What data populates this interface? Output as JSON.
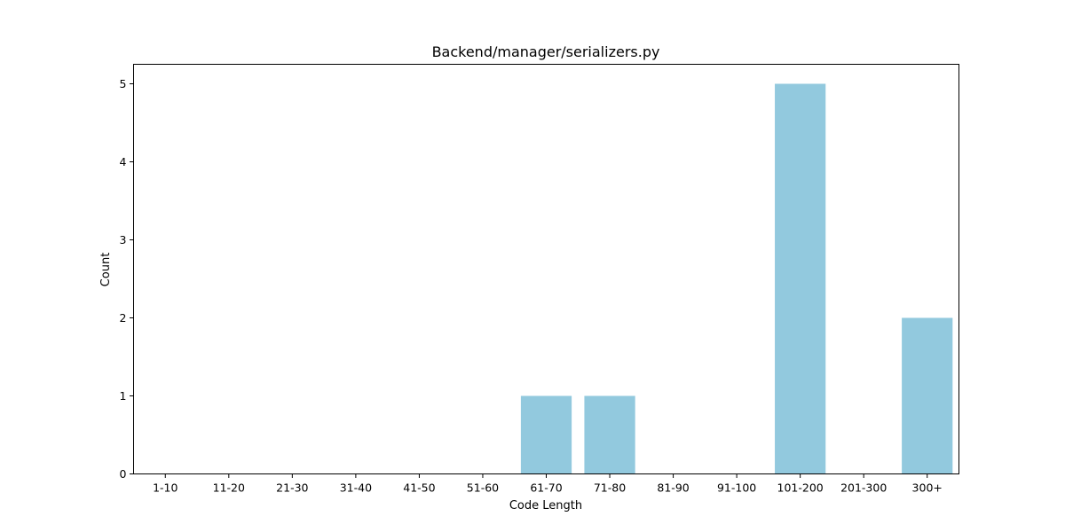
{
  "chart_data": {
    "type": "bar",
    "title": "Backend/manager/serializers.py",
    "xlabel": "Code Length",
    "ylabel": "Count",
    "categories": [
      "1-10",
      "11-20",
      "21-30",
      "31-40",
      "41-50",
      "51-60",
      "61-70",
      "71-80",
      "81-90",
      "91-100",
      "101-200",
      "201-300",
      "300+"
    ],
    "values": [
      0,
      0,
      0,
      0,
      0,
      0,
      1,
      1,
      0,
      0,
      5,
      0,
      2
    ],
    "ylim": [
      0,
      5.25
    ],
    "yticks": [
      0,
      1,
      2,
      3,
      4,
      5
    ],
    "grid": false,
    "bar_color": "#92c9de"
  }
}
